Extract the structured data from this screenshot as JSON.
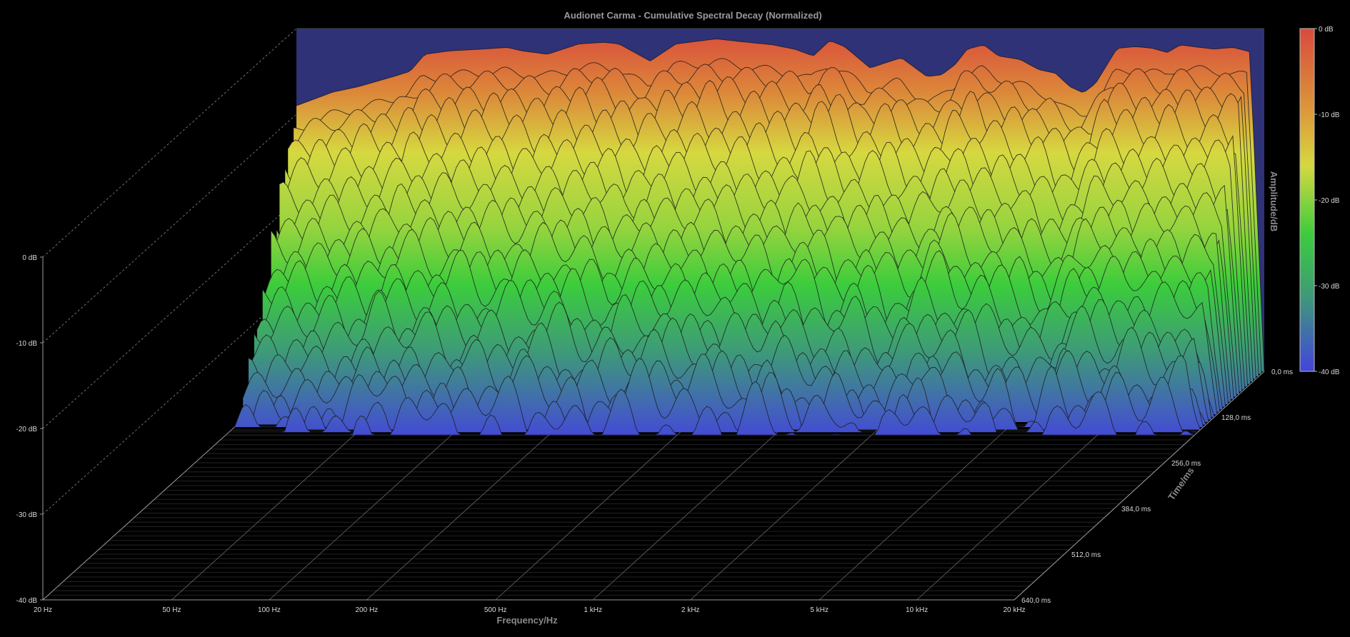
{
  "chart_data": {
    "type": "area",
    "title": "Audionet Carma - Cumulative Spectral Decay (Normalized)",
    "xlabel": "Frequency/Hz",
    "ylabel": "Amplitude/dB",
    "zlabel": "Time/ms",
    "x_ticks": [
      "20 Hz",
      "50 Hz",
      "100 Hz",
      "200 Hz",
      "500 Hz",
      "1 kHz",
      "2 kHz",
      "5 kHz",
      "10 kHz",
      "20 kHz"
    ],
    "x_tick_values": [
      20,
      50,
      100,
      200,
      500,
      1000,
      2000,
      5000,
      10000,
      20000
    ],
    "z_ticks": [
      "0,0 ms",
      "128,0 ms",
      "256,0 ms",
      "384,0 ms",
      "512,0 ms",
      "640,0 ms"
    ],
    "z_tick_values": [
      0,
      128,
      256,
      384,
      512,
      640
    ],
    "y_ticks": [
      "0 dB",
      "-10 dB",
      "-20 dB",
      "-30 dB",
      "-40 dB"
    ],
    "y_tick_values": [
      0,
      -10,
      -20,
      -30,
      -40
    ],
    "colorbar_ticks": [
      "0 dB",
      "-10 dB",
      "-20 dB",
      "-30 dB",
      "-40 dB"
    ],
    "colorbar_colors": [
      "#d94a3c",
      "#dc9c3a",
      "#d6d840",
      "#3ccc3c",
      "#3e9a78",
      "#4444dd"
    ],
    "background_color": "#2f3276",
    "xlim": [
      20,
      20000
    ],
    "ylim": [
      -40,
      0
    ],
    "zlim": [
      0,
      640
    ],
    "x_scale": "log",
    "grid": true,
    "slice_count": 26,
    "decay_time_ms": [
      0,
      7.1,
      14.2,
      21.3,
      28.4,
      35.5,
      42.6,
      49.7,
      56.8,
      63.9,
      71.0,
      78.1,
      85.2,
      92.3,
      99.4,
      106.5,
      113.6,
      120.7,
      127.8,
      134.9,
      142.0,
      149.1,
      156.2,
      163.3,
      170.4,
      177.5
    ],
    "initial_response": {
      "freq_hz": [
        20,
        26,
        31,
        40,
        45,
        50,
        60,
        75,
        90,
        100,
        120,
        150,
        180,
        200,
        250,
        300,
        400,
        500,
        600,
        700,
        800,
        900,
        1000,
        1200,
        1500,
        1800,
        2000,
        2200,
        2400,
        2700,
        3000,
        3500,
        4000,
        4500,
        5000,
        5500,
        6000,
        7000,
        8000,
        9000,
        10000,
        11000,
        12000,
        14000,
        16000,
        18000,
        20000
      ],
      "db": [
        -9,
        -7.4,
        -6.8,
        -5.6,
        -5,
        -3,
        -2.6,
        -2.4,
        -2.2,
        -2.6,
        -3,
        -1.8,
        -1.6,
        -1.8,
        -3.8,
        -1.8,
        -1.2,
        -1.6,
        -1.9,
        -2.4,
        -3.2,
        -1.4,
        -2.1,
        -4.6,
        -3.4,
        -5.6,
        -5.4,
        -4.2,
        -2.4,
        -1.9,
        -3.2,
        -3.6,
        -4.8,
        -5.2,
        -6.8,
        -7.5,
        -6.4,
        -2.3,
        -2.1,
        -2.3,
        -2.8,
        -1.9,
        -2.1,
        -2.4,
        -2.2,
        -2.7,
        -2.5
      ]
    },
    "slice_level_db": [
      -1.9,
      -2.5,
      -3.2,
      -5.1,
      -6.3,
      -8.1,
      -10.2,
      -11.5,
      -13.4,
      -14.8,
      -16.6,
      -17.6,
      -19.5,
      -20.6,
      -22.6,
      -23.2,
      -25.3,
      -26.0,
      -28.1,
      -28.8,
      -31.0,
      -31.3,
      -33.3,
      -33.7,
      -35.0,
      -36.8
    ]
  }
}
